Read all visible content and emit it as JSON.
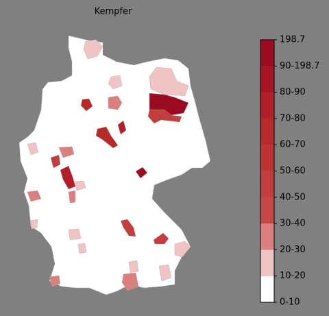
{
  "title": "Kempfer",
  "colorbar": {
    "labels": [
      "0-10",
      "10-20",
      "20-30",
      "30-40",
      "40-50",
      "50-60",
      "60-70",
      "70-80",
      "80-90",
      "90-198.7",
      "198.7"
    ],
    "colors": [
      "#ffffff",
      "#f0c4c4",
      "#db8080",
      "#c84848",
      "#c23e3e",
      "#bd3434",
      "#b72a2a",
      "#b01f2a",
      "#a51526",
      "#9a0a20"
    ]
  }
}
